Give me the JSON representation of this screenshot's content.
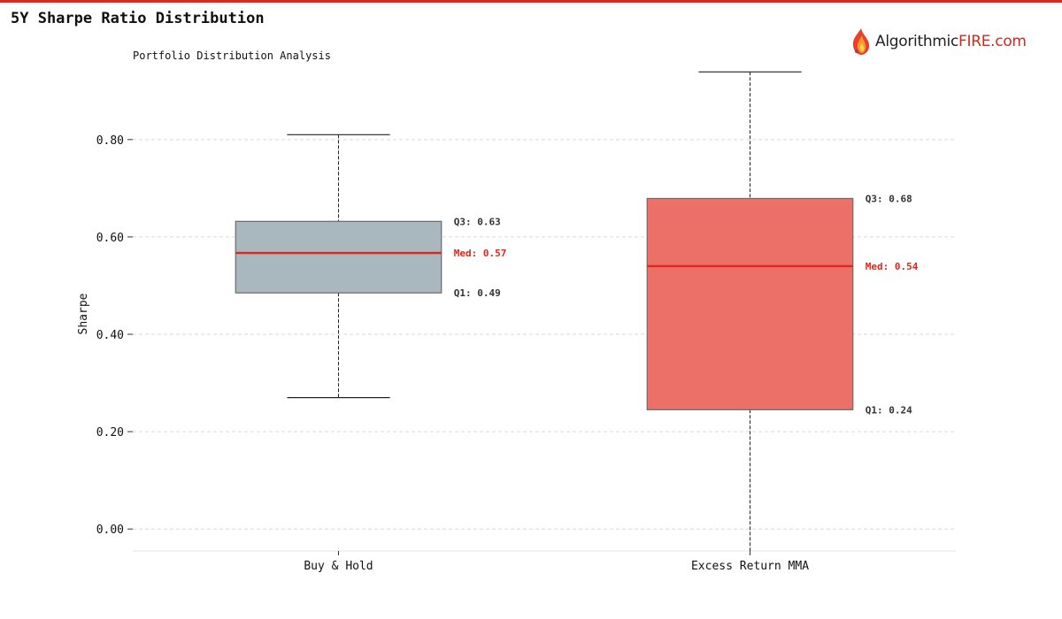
{
  "header": {
    "title": "5Y Sharpe Ratio Distribution",
    "brand_name": "Algorithmic",
    "brand_suffix": "FIRE.com"
  },
  "colors": {
    "accent": "#e0251b",
    "median": "#e0251b",
    "box_buy_hold": "#a9b7be",
    "box_excess": "#ec7067",
    "grid": "#d9d9d9"
  },
  "chart_data": {
    "type": "box",
    "title": "Portfolio Distribution Analysis",
    "xlabel": "",
    "ylabel": "Sharpe",
    "ylim": [
      -0.045,
      0.945
    ],
    "yticks": [
      0.0,
      0.2,
      0.4,
      0.6,
      0.8
    ],
    "ytick_labels": [
      "0.00",
      "0.20",
      "0.40",
      "0.60",
      "0.80"
    ],
    "grid": true,
    "categories": [
      "Buy & Hold",
      "Excess Return MMA"
    ],
    "series": [
      {
        "category": "Buy & Hold",
        "whisker_low": 0.27,
        "q1": 0.485,
        "median": 0.567,
        "q3": 0.632,
        "whisker_high": 0.81,
        "q1_label": "Q1: 0.49",
        "median_label": "Med: 0.57",
        "q3_label": "Q3: 0.63",
        "color": "#a9b7be"
      },
      {
        "category": "Excess Return MMA",
        "whisker_low": -0.055,
        "q1": 0.245,
        "median": 0.54,
        "q3": 0.679,
        "whisker_high": 0.939,
        "q1_label": "Q1: 0.24",
        "median_label": "Med: 0.54",
        "q3_label": "Q3: 0.68",
        "color": "#ec7067"
      }
    ]
  }
}
